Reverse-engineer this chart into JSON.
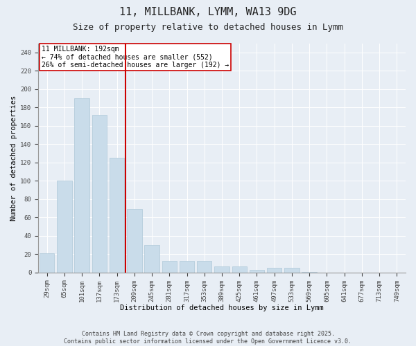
{
  "title1": "11, MILLBANK, LYMM, WA13 9DG",
  "title2": "Size of property relative to detached houses in Lymm",
  "xlabel": "Distribution of detached houses by size in Lymm",
  "ylabel": "Number of detached properties",
  "categories": [
    "29sqm",
    "65sqm",
    "101sqm",
    "137sqm",
    "173sqm",
    "209sqm",
    "245sqm",
    "281sqm",
    "317sqm",
    "353sqm",
    "389sqm",
    "425sqm",
    "461sqm",
    "497sqm",
    "533sqm",
    "569sqm",
    "605sqm",
    "641sqm",
    "677sqm",
    "713sqm",
    "749sqm"
  ],
  "values": [
    21,
    100,
    190,
    172,
    125,
    69,
    30,
    13,
    13,
    13,
    7,
    7,
    3,
    5,
    5,
    1,
    0,
    0,
    0,
    0,
    0
  ],
  "bar_color": "#c9dcea",
  "bar_edge_color": "#aec8d8",
  "vline_x": 4.5,
  "vline_color": "#cc0000",
  "annotation_text": "11 MILLBANK: 192sqm\n← 74% of detached houses are smaller (552)\n26% of semi-detached houses are larger (192) →",
  "annotation_box_color": "#ffffff",
  "annotation_box_edge": "#cc0000",
  "ylim": [
    0,
    250
  ],
  "yticks": [
    0,
    20,
    40,
    60,
    80,
    100,
    120,
    140,
    160,
    180,
    200,
    220,
    240
  ],
  "background_color": "#e8eef5",
  "plot_bg_color": "#e8eef5",
  "footer_text": "Contains HM Land Registry data © Crown copyright and database right 2025.\nContains public sector information licensed under the Open Government Licence v3.0.",
  "title1_fontsize": 11,
  "title2_fontsize": 9,
  "xlabel_fontsize": 7.5,
  "ylabel_fontsize": 7.5,
  "tick_fontsize": 6.5,
  "annotation_fontsize": 7,
  "footer_fontsize": 6
}
